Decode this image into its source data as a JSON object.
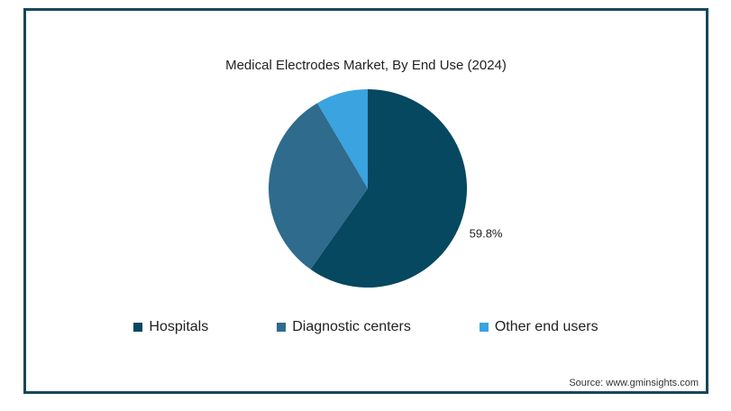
{
  "chart_data": {
    "type": "pie",
    "title": "Medical Electrodes Market, By End Use (2024)",
    "slices": [
      {
        "name": "Hospitals",
        "value": 59.8,
        "color": "#05485f",
        "label": "59.8%"
      },
      {
        "name": "Diagnostic centers",
        "value": 31.7,
        "color": "#2f6b8c",
        "label": ""
      },
      {
        "name": "Other end users",
        "value": 8.5,
        "color": "#3aa3e0",
        "label": ""
      }
    ],
    "legend_position": "bottom"
  },
  "source": "Source: www.gminsights.com"
}
